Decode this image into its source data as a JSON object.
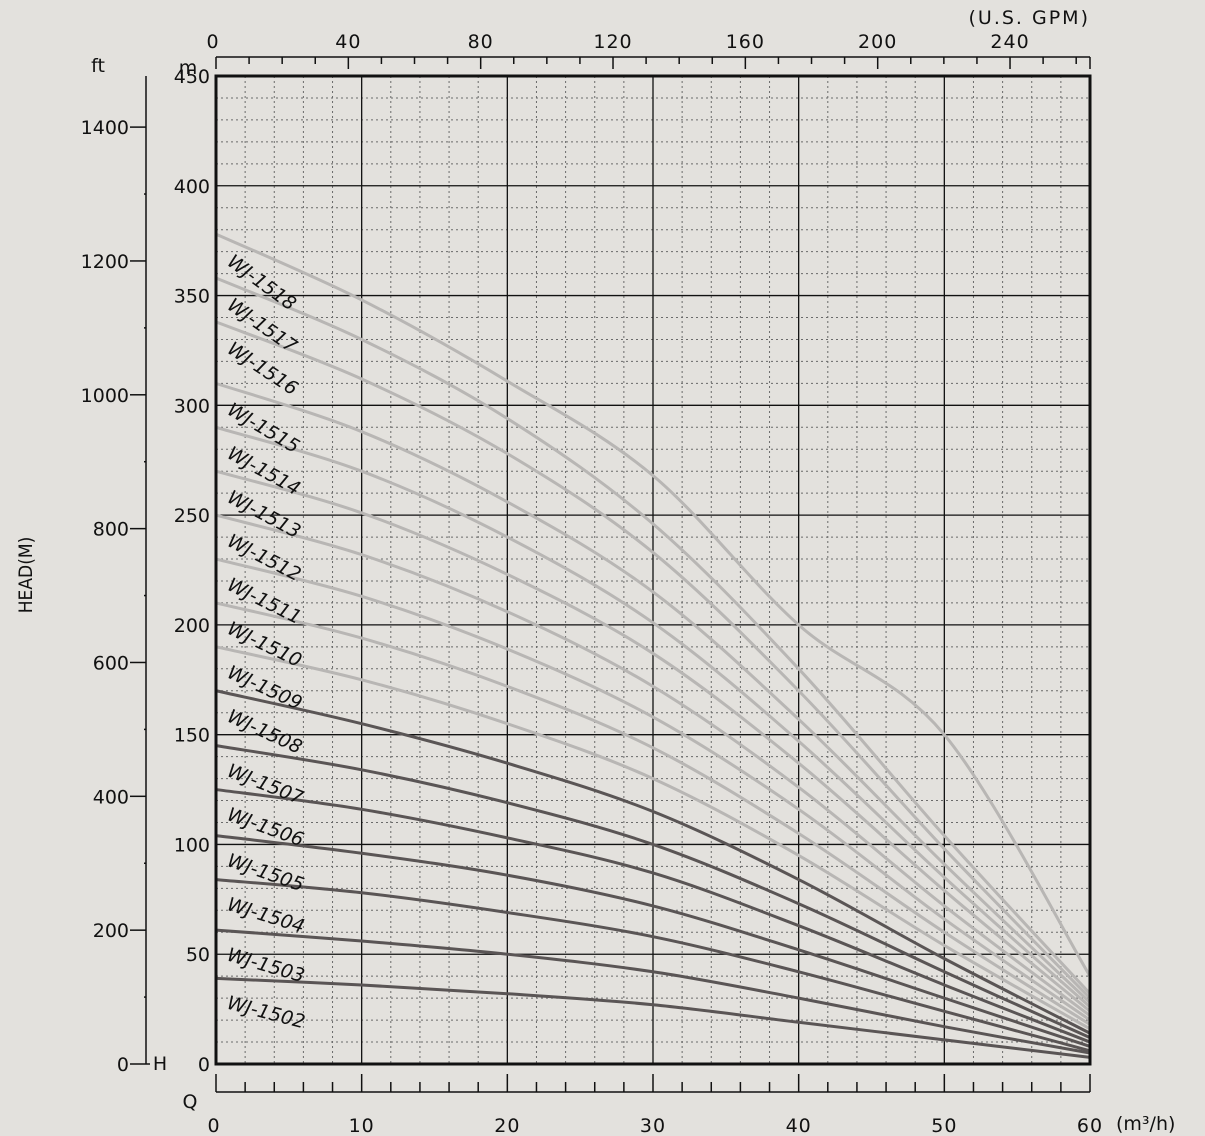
{
  "chart_data": {
    "type": "line",
    "title": "",
    "unit_labels": {
      "gpm": "(U.S. GPM)",
      "m": "m",
      "ft": "ft",
      "h": "H",
      "q": "Q",
      "m3h": "(m³/h)"
    },
    "ylabel": "HEAD(M)",
    "xlim": [
      0,
      60
    ],
    "ylim": [
      0,
      450
    ],
    "x_ticks": [
      0,
      10,
      20,
      30,
      40,
      50,
      60
    ],
    "y_ticks_m": [
      0,
      50,
      100,
      150,
      200,
      250,
      300,
      350,
      400,
      450
    ],
    "y_ticks_ft": [
      0,
      200,
      400,
      600,
      800,
      1000,
      1200,
      1400
    ],
    "gpm_ticks": [
      0,
      40,
      80,
      120,
      160,
      200,
      240
    ],
    "grid": true,
    "colors": {
      "dark_series": "#5a5555",
      "light_series": "#b8b6b4",
      "axis": "#111111",
      "background": "#e3e1dd"
    },
    "series": [
      {
        "name": "WJ-1502",
        "shade": "dark",
        "x": [
          0,
          10,
          20,
          30,
          40,
          50,
          60
        ],
        "y": [
          39,
          36,
          32,
          27,
          19,
          11,
          3
        ]
      },
      {
        "name": "WJ-1503",
        "shade": "dark",
        "x": [
          0,
          10,
          20,
          30,
          40,
          50,
          60
        ],
        "y": [
          61,
          56,
          50,
          42,
          30,
          17,
          5
        ]
      },
      {
        "name": "WJ-1504",
        "shade": "dark",
        "x": [
          0,
          10,
          20,
          30,
          40,
          50,
          60
        ],
        "y": [
          84,
          78,
          69,
          58,
          42,
          24,
          6
        ]
      },
      {
        "name": "WJ-1505",
        "shade": "dark",
        "x": [
          0,
          10,
          20,
          30,
          40,
          50,
          60
        ],
        "y": [
          104,
          96,
          86,
          72,
          52,
          30,
          8
        ]
      },
      {
        "name": "WJ-1506",
        "shade": "dark",
        "x": [
          0,
          10,
          20,
          30,
          40,
          50,
          60
        ],
        "y": [
          125,
          116,
          103,
          87,
          63,
          36,
          10
        ]
      },
      {
        "name": "WJ-1507",
        "shade": "dark",
        "x": [
          0,
          10,
          20,
          30,
          40,
          50,
          60
        ],
        "y": [
          145,
          134,
          119,
          100,
          73,
          42,
          12
        ]
      },
      {
        "name": "WJ-1508",
        "shade": "dark",
        "x": [
          0,
          10,
          20,
          30,
          40,
          50,
          60
        ],
        "y": [
          170,
          155,
          137,
          115,
          84,
          48,
          14
        ]
      },
      {
        "name": "WJ-1509",
        "shade": "light",
        "x": [
          0,
          10,
          20,
          30,
          40,
          50,
          60
        ],
        "y": [
          190,
          175,
          155,
          130,
          95,
          54,
          16
        ]
      },
      {
        "name": "WJ-1510",
        "shade": "light",
        "x": [
          0,
          10,
          20,
          30,
          40,
          50,
          60
        ],
        "y": [
          210,
          194,
          172,
          144,
          105,
          60,
          18
        ]
      },
      {
        "name": "WJ-1511",
        "shade": "light",
        "x": [
          0,
          10,
          20,
          30,
          40,
          50,
          60
        ],
        "y": [
          230,
          213,
          189,
          158,
          116,
          66,
          20
        ]
      },
      {
        "name": "WJ-1512",
        "shade": "light",
        "x": [
          0,
          10,
          20,
          30,
          40,
          50,
          60
        ],
        "y": [
          250,
          232,
          206,
          172,
          126,
          72,
          22
        ]
      },
      {
        "name": "WJ-1513",
        "shade": "light",
        "x": [
          0,
          10,
          20,
          30,
          40,
          50,
          60
        ],
        "y": [
          270,
          251,
          223,
          187,
          137,
          79,
          24
        ]
      },
      {
        "name": "WJ-1514",
        "shade": "light",
        "x": [
          0,
          10,
          20,
          30,
          40,
          50,
          60
        ],
        "y": [
          290,
          270,
          240,
          201,
          147,
          85,
          26
        ]
      },
      {
        "name": "WJ-1515",
        "shade": "light",
        "x": [
          0,
          10,
          20,
          30,
          40,
          50,
          60
        ],
        "y": [
          310,
          288,
          256,
          215,
          157,
          91,
          28
        ]
      },
      {
        "name": "WJ-1516",
        "shade": "light",
        "x": [
          0,
          10,
          20,
          30,
          40,
          50,
          60
        ],
        "y": [
          338,
          312,
          278,
          233,
          170,
          98,
          30
        ]
      },
      {
        "name": "WJ-1517",
        "shade": "light",
        "x": [
          0,
          10,
          20,
          30,
          40,
          50,
          60
        ],
        "y": [
          358,
          330,
          294,
          246,
          180,
          104,
          32
        ]
      },
      {
        "name": "WJ-1518",
        "shade": "light",
        "x": [
          0,
          10,
          20,
          30,
          40,
          50,
          60
        ],
        "y": [
          378,
          348,
          311,
          268,
          200,
          150,
          40
        ]
      }
    ]
  }
}
